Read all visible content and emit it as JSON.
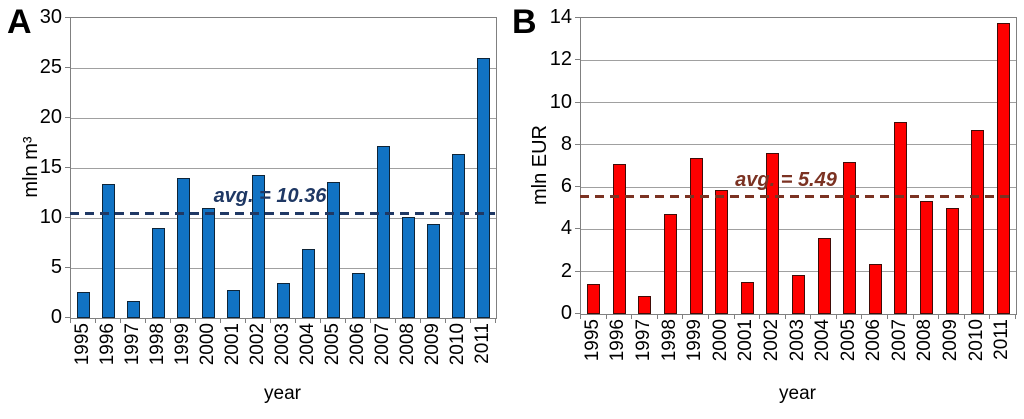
{
  "figure": {
    "background": "#FFFFFF",
    "palette": {
      "grid": "#A0A0A0",
      "plot_border": "#808080",
      "text": "#000000"
    }
  },
  "chart_data": [
    {
      "id": "A",
      "type": "bar",
      "panel_label": "A",
      "title": "",
      "ylabel": "mln m³",
      "xlabel": "year",
      "ylim": [
        0,
        30
      ],
      "yticks": [
        30,
        25,
        20,
        15,
        10,
        5,
        0
      ],
      "grid": true,
      "legend": "none",
      "categories": [
        "1995",
        "1996",
        "1997",
        "1998",
        "1999",
        "2000",
        "2001",
        "2002",
        "2003",
        "2004",
        "2005",
        "2006",
        "2007",
        "2008",
        "2009",
        "2010",
        "2011"
      ],
      "values": [
        2.6,
        13.4,
        1.7,
        9.0,
        14.0,
        11.0,
        2.8,
        14.3,
        3.5,
        6.9,
        13.6,
        4.5,
        17.2,
        10.1,
        9.4,
        16.4,
        26.0
      ],
      "average": {
        "label": "avg. = 10.36",
        "value": 10.36
      },
      "colors": {
        "bar_fill": "#1173C4",
        "bar_border": "#0E2437",
        "avg": "#1F3864"
      }
    },
    {
      "id": "B",
      "type": "bar",
      "panel_label": "B",
      "title": "",
      "ylabel": "mln EUR",
      "xlabel": "year",
      "ylim": [
        0,
        14
      ],
      "yticks": [
        14,
        12,
        10,
        8,
        6,
        4,
        2,
        0
      ],
      "grid": true,
      "legend": "none",
      "categories": [
        "1995",
        "1996",
        "1997",
        "1998",
        "1999",
        "2000",
        "2001",
        "2002",
        "2003",
        "2004",
        "2005",
        "2006",
        "2007",
        "2008",
        "2009",
        "2010",
        "2011"
      ],
      "values": [
        1.4,
        7.1,
        0.85,
        4.75,
        7.4,
        5.85,
        1.5,
        7.6,
        1.85,
        3.6,
        7.2,
        2.35,
        9.1,
        5.35,
        5.0,
        8.7,
        13.75
      ],
      "average": {
        "label": "avg. = 5.49",
        "value": 5.49
      },
      "colors": {
        "bar_fill": "#FE0000",
        "bar_border": "#3F0C08",
        "avg": "#7B3222"
      }
    }
  ]
}
